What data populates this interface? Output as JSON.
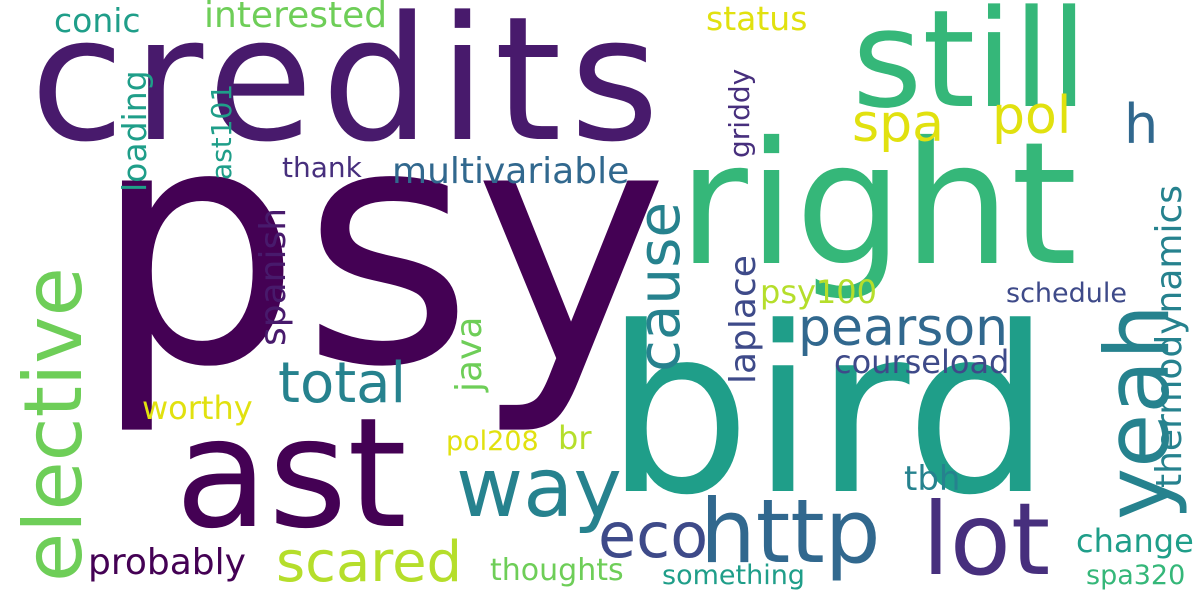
{
  "palette": {
    "deep_purple": "#440154",
    "purple": "#481a6c",
    "indigo": "#472f7d",
    "blue_violet": "#3e4a89",
    "blue": "#31688e",
    "steel_teal": "#26828e",
    "teal": "#1f9e89",
    "green_teal": "#35b779",
    "green": "#6ece58",
    "lime": "#b5de2b",
    "yellow": "#e1e10f"
  },
  "words": {
    "psy": "psy",
    "credits": "credits",
    "bird": "bird",
    "right": "right",
    "still": "still",
    "ast": "ast",
    "elective": "elective",
    "http": "http",
    "lot": "lot",
    "way": "way",
    "yeah": "yeah",
    "pearson": "pearson",
    "total": "total",
    "cause": "cause",
    "eco": "eco",
    "scared": "scared",
    "spa": "spa",
    "pol": "pol",
    "h": "h",
    "multivariable": "multivariable",
    "thermodynamics": "thermodynamics",
    "interested": "interested",
    "status": "status",
    "conic": "conic",
    "loading": "loading",
    "ast101": "ast101",
    "griddy": "griddy",
    "thank": "thank",
    "spanish": "spanish",
    "java": "java",
    "laplace": "laplace",
    "psy100": "psy100",
    "schedule": "schedule",
    "courseload": "courseload",
    "worthy": "worthy",
    "pol208": "pol208",
    "br": "br",
    "tbh": "tbh",
    "change": "change",
    "probably": "probably",
    "thoughts": "thoughts",
    "something": "something",
    "spa320": "spa320"
  }
}
